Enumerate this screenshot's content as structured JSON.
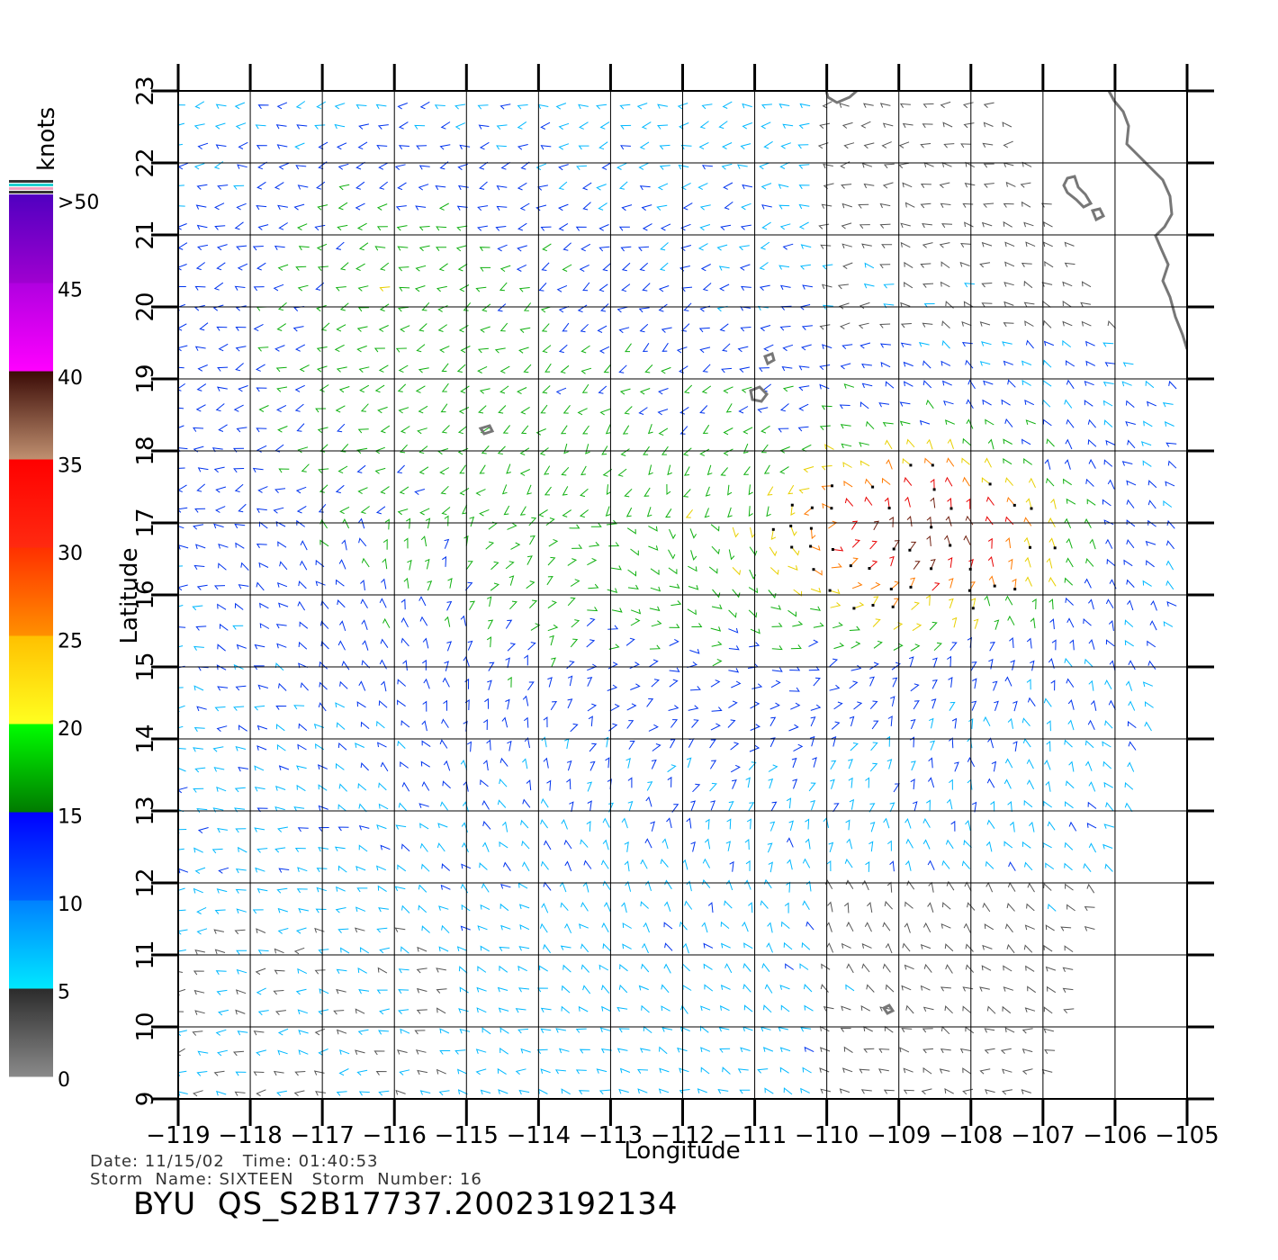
{
  "map": {
    "lon_range": [
      -119,
      -105
    ],
    "lat_range": [
      9,
      23
    ],
    "lon_ticks": [
      "−119",
      "−118",
      "−117",
      "−116",
      "−115",
      "−114",
      "−113",
      "−112",
      "−111",
      "−110",
      "−109",
      "−108",
      "−107",
      "−106",
      "−105"
    ],
    "lat_ticks": [
      "9",
      "10",
      "11",
      "12",
      "13",
      "14",
      "15",
      "16",
      "17",
      "18",
      "19",
      "20",
      "21",
      "22",
      "23"
    ],
    "xlabel": "Longitude",
    "ylabel": "Latitude",
    "wind_field": "QuikSCAT wind barbs colored by speed; strongest winds (30–45 knots) between 16°N–18°N, 110°W–107°W around the storm",
    "coastline_color": "#777777"
  },
  "colorbar": {
    "unit": "knots",
    "bands": [
      {
        "from": 0,
        "to": 5,
        "top": "#2b2b2b",
        "bottom": "#8a8a8a"
      },
      {
        "from": 5,
        "to": 10,
        "top": "#0080ff",
        "bottom": "#00e8ff"
      },
      {
        "from": 10,
        "to": 15,
        "top": "#0000ff",
        "bottom": "#0060ff"
      },
      {
        "from": 15,
        "to": 20,
        "top": "#00ff00",
        "bottom": "#007a00"
      },
      {
        "from": 20,
        "to": 25,
        "top": "#ffc000",
        "bottom": "#ffff20"
      },
      {
        "from": 25,
        "to": 30,
        "top": "#ff3000",
        "bottom": "#ff9000"
      },
      {
        "from": 30,
        "to": 35,
        "top": "#ff0000",
        "bottom": "#ff2a10"
      },
      {
        "from": 35,
        "to": 40,
        "top": "#3a0a05",
        "bottom": "#c09070"
      },
      {
        "from": 40,
        "to": 45,
        "top": "#b000e0",
        "bottom": "#ff00ff"
      },
      {
        "from": 45,
        "to": 50,
        "top": "#5000c0",
        "bottom": "#a000d0"
      }
    ],
    "labels": [
      ">50",
      "45",
      "40",
      "35",
      "30",
      "25",
      "20",
      "15",
      "10",
      "5",
      "0"
    ]
  },
  "footer": {
    "date_line": "Date: 11/15/02   Time: 01:40:53",
    "storm_line": "Storm  Name: SIXTEEN   Storm  Number: 16",
    "title": "BYU  QS_S2B17737.20023192134"
  }
}
